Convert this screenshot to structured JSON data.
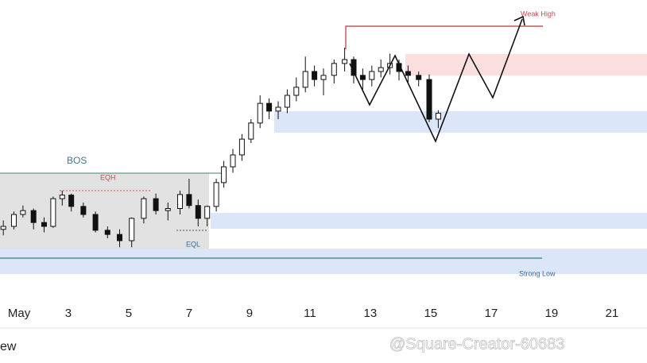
{
  "chart_data": {
    "type": "candlestick",
    "x": [
      0.85,
      1.2,
      1.5,
      1.85,
      2.2,
      2.5,
      2.8,
      3.1,
      3.5,
      3.9,
      4.3,
      4.7,
      5.1,
      5.5,
      5.9,
      6.3,
      6.7,
      7.0,
      7.3,
      7.6,
      7.9,
      8.15,
      8.45,
      8.75,
      9.05,
      9.35,
      9.65,
      9.95,
      10.25,
      10.55,
      10.85,
      11.15,
      11.45,
      11.8,
      12.15,
      12.45,
      12.75,
      13.05,
      13.35,
      13.65,
      13.95,
      14.25,
      14.6,
      14.95,
      15.25
    ],
    "open": [
      23,
      24,
      28,
      29.3,
      25.3,
      24,
      33.3,
      34.5,
      30.7,
      28,
      22.7,
      21.3,
      19.2,
      26.7,
      33.3,
      29.3,
      30,
      34.7,
      31,
      26.7,
      30.7,
      38.7,
      44,
      48,
      53.3,
      58.7,
      65.3,
      62.7,
      64,
      68,
      70.7,
      76,
      73.3,
      74.7,
      78.7,
      80,
      74.7,
      73.3,
      76,
      77.3,
      78.7,
      76,
      74.7,
      73.3,
      60
    ],
    "high": [
      26,
      29,
      31,
      30,
      27,
      34,
      36,
      35,
      32,
      29,
      24,
      23,
      27,
      34,
      35,
      32,
      36,
      40,
      33,
      31,
      40,
      46,
      50,
      55,
      60,
      68,
      67,
      66,
      70,
      74,
      81,
      78,
      77,
      80,
      84,
      81,
      77,
      78,
      80,
      82,
      80,
      78,
      76,
      75,
      63
    ],
    "low": [
      21,
      23,
      27,
      23,
      22,
      23.5,
      31,
      29,
      27,
      22,
      20,
      17,
      17,
      25,
      28,
      26,
      28,
      30,
      24,
      24,
      29,
      37,
      42,
      46,
      52,
      57,
      60,
      60,
      62,
      66,
      69,
      71,
      68,
      72,
      76,
      72,
      70,
      71,
      74,
      75,
      73,
      72,
      71,
      59,
      57
    ],
    "close": [
      24,
      28,
      29.3,
      25.3,
      24,
      33.3,
      34.5,
      30.7,
      28,
      22.7,
      21.3,
      19.2,
      26.7,
      33.3,
      29.3,
      30,
      34.7,
      31,
      26.7,
      30.7,
      38.7,
      44,
      48,
      53.3,
      58.7,
      65.3,
      62.7,
      64,
      68,
      70.7,
      76,
      73.3,
      74.7,
      78.7,
      80,
      74.7,
      73.3,
      76,
      77.3,
      78.7,
      76,
      74.7,
      73.3,
      60,
      62
    ],
    "up_color": "#ffffff",
    "down_color": "#111111",
    "xlim": [
      0.74,
      22.16
    ],
    "xticks": [
      {
        "value": 1,
        "label": "May"
      },
      3,
      5,
      7,
      9,
      11,
      13,
      15,
      17,
      19,
      21
    ],
    "ylim": [
      0,
      100
    ],
    "annotations": [
      "BOS",
      "EQH",
      "EQL",
      "Weak High",
      "Strong Low"
    ],
    "footer": "ew",
    "watermark": "@Square-Creator-60683"
  }
}
